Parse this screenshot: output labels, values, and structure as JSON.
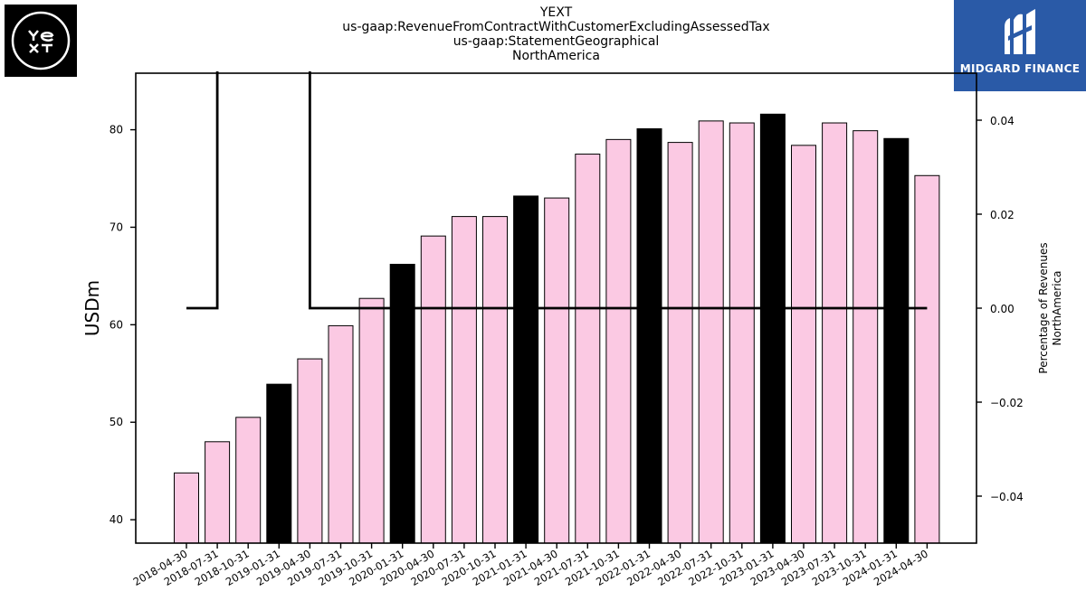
{
  "header": {
    "title_lines": [
      "YEXT",
      "us-gaap:RevenueFromContractWithCustomerExcludingAssessedTax",
      "us-gaap:StatementGeographical",
      "NorthAmerica"
    ]
  },
  "logos": {
    "left_icon": "yext-logo",
    "left_text": "YEXT",
    "right_icon": "midgard-finance-logo",
    "right_text": "MIDGARD FINANCE"
  },
  "chart_data": {
    "type": "bar",
    "title": "YEXT us-gaap:RevenueFromContractWithCustomerExcludingAssessedTax us-gaap:StatementGeographical NorthAmerica",
    "ylabel": "USDm",
    "y2label_lines": [
      "Percentage of Revenues",
      "NorthAmerica"
    ],
    "ylim": [
      37.6,
      85.8
    ],
    "y_ticks": [
      40,
      50,
      60,
      70,
      80
    ],
    "y2lim": [
      -0.05,
      0.05
    ],
    "y2_ticks": [
      -0.04,
      -0.02,
      0.0,
      0.02,
      0.04
    ],
    "y2_tick_labels": [
      "−0.04",
      "−0.02",
      "0.00",
      "0.02",
      "0.04"
    ],
    "categories": [
      "2018-04-30",
      "2018-07-31",
      "2018-10-31",
      "2019-01-31",
      "2019-04-30",
      "2019-07-31",
      "2019-10-31",
      "2020-01-31",
      "2020-04-30",
      "2020-07-31",
      "2020-10-31",
      "2021-01-31",
      "2021-04-30",
      "2021-07-31",
      "2021-10-31",
      "2022-01-31",
      "2022-04-30",
      "2022-07-31",
      "2022-10-31",
      "2023-01-31",
      "2023-04-30",
      "2023-07-31",
      "2023-10-31",
      "2024-01-31",
      "2024-04-30"
    ],
    "series": [
      {
        "values": [
          44.8,
          48.0,
          50.5,
          53.9,
          56.5,
          59.9,
          62.7,
          66.2,
          69.1,
          71.1,
          71.1,
          73.2,
          73.0,
          77.5,
          79.0,
          80.1,
          78.7,
          80.9,
          80.7,
          81.6,
          78.4,
          80.7,
          79.9,
          79.1,
          75.3
        ],
        "highlight": [
          false,
          false,
          false,
          true,
          false,
          false,
          false,
          true,
          false,
          false,
          false,
          true,
          false,
          false,
          false,
          true,
          false,
          false,
          false,
          true,
          false,
          false,
          false,
          true,
          false
        ]
      },
      {
        "axis": "right",
        "type": "line",
        "values": [
          0.0,
          0.0,
          null,
          null,
          0.0,
          0.0,
          0.0,
          0.0,
          0.0,
          0.0,
          0.0,
          0.0,
          0.0,
          0.0,
          0.0,
          0.0,
          0.0,
          0.0,
          0.0,
          0.0,
          0.0,
          0.0,
          0.0,
          0.0,
          0.0
        ]
      }
    ],
    "colors": {
      "bar": "#fbc9e3",
      "bar_highlight": "#000000",
      "edge": "#000000",
      "line": "#000000"
    },
    "grid": false,
    "legend": "none"
  }
}
